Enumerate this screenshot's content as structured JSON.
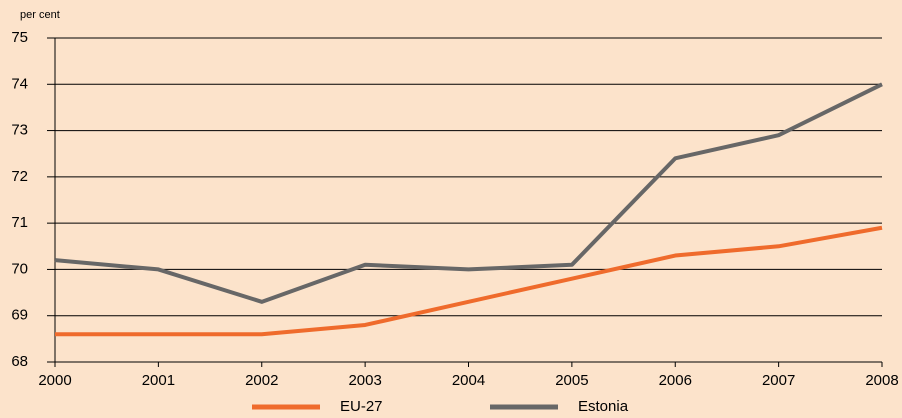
{
  "chart_data": {
    "type": "line",
    "y_label": "per cent",
    "x": [
      2000,
      2001,
      2002,
      2003,
      2004,
      2005,
      2006,
      2007,
      2008
    ],
    "xlim": [
      2000,
      2008
    ],
    "xticks": [
      2000,
      2001,
      2002,
      2003,
      2004,
      2005,
      2006,
      2007,
      2008
    ],
    "ylim": [
      68,
      75
    ],
    "yticks": [
      68,
      69,
      70,
      71,
      72,
      73,
      74,
      75
    ],
    "grid": true,
    "legend": "bottom",
    "series": [
      {
        "name": "EU-27",
        "color": "#ef6b2c",
        "values": [
          68.6,
          68.6,
          68.6,
          68.8,
          69.3,
          69.8,
          70.3,
          70.5,
          70.9
        ]
      },
      {
        "name": "Estonia",
        "color": "#676767",
        "values": [
          70.2,
          70.0,
          69.3,
          70.1,
          70.0,
          70.1,
          72.4,
          72.9,
          74.0
        ]
      }
    ]
  }
}
